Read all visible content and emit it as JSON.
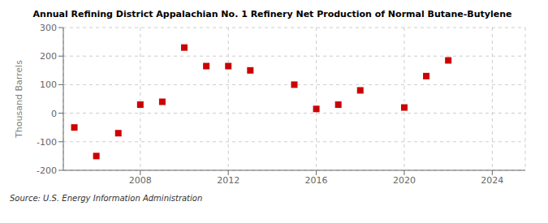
{
  "chart_data": {
    "type": "scatter",
    "title": "Annual Refining District Appalachian No. 1 Refinery Net Production of Normal Butane-Butylene",
    "ylabel": "Thousand Barrels",
    "annotation": "Source: U.S. Energy Information Administration",
    "color": "#cc0000",
    "marker": "square",
    "grid": true,
    "xlim": [
      2004.5,
      2025.5
    ],
    "ylim": [
      -200,
      300
    ],
    "xticks": [
      2008,
      2012,
      2016,
      2020,
      2024
    ],
    "yticks": [
      -200,
      -100,
      0,
      100,
      200,
      300
    ],
    "x": [
      2005,
      2006,
      2007,
      2008,
      2009,
      2010,
      2011,
      2012,
      2013,
      2015,
      2016,
      2017,
      2018,
      2020,
      2021,
      2022
    ],
    "values": [
      -50,
      -150,
      -70,
      30,
      40,
      230,
      165,
      165,
      150,
      100,
      15,
      30,
      80,
      20,
      130,
      185
    ]
  }
}
